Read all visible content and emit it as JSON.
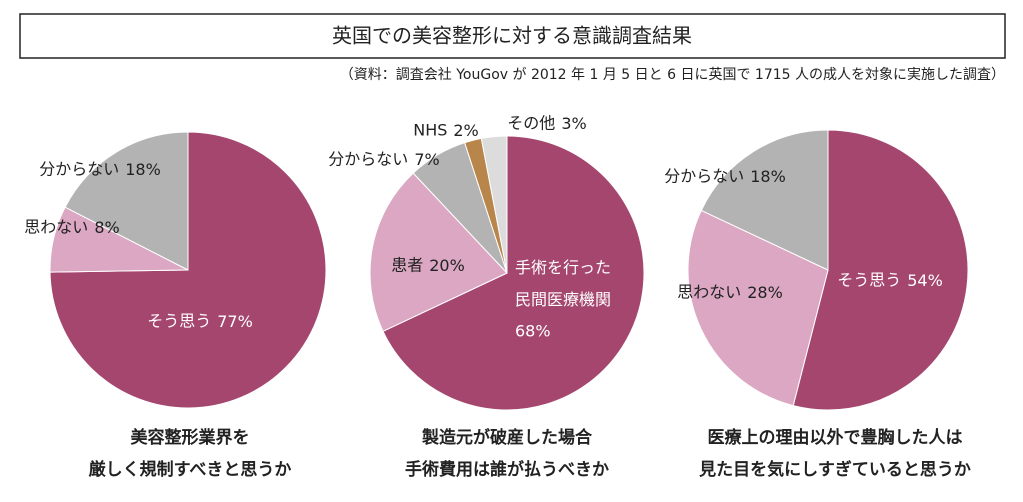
{
  "title": "英国での美容整形に対する意識調査結果",
  "source": "（資料：調査会社 YouGov が 2012 年 1 月 5 日と 6 日に英国で 1715 人の成人を対象に実施した調査）",
  "chart_data": [
    {
      "type": "pie",
      "caption": [
        "美容整形業界を",
        "厳しく規制すべきと思うか"
      ],
      "categories": [
        "そう思う",
        "思わない",
        "分からない"
      ],
      "values": [
        77,
        8,
        18
      ],
      "value_labels": [
        "77%",
        "8%",
        "18%"
      ],
      "colors": [
        "#a5466f",
        "#dba7c2",
        "#b3b3b3"
      ]
    },
    {
      "type": "pie",
      "caption": [
        "製造元が破産した場合",
        "手術費用は誰が払うべきか"
      ],
      "categories": [
        "手術を行った\n民間医療機関",
        "患者",
        "分からない",
        "NHS",
        "その他"
      ],
      "values": [
        68,
        20,
        7,
        2,
        3
      ],
      "value_labels": [
        "68%",
        "20%",
        "7%",
        "2%",
        "3%"
      ],
      "colors": [
        "#a5466f",
        "#dba7c2",
        "#b3b3b3",
        "#b8864b",
        "#dcdcdc"
      ]
    },
    {
      "type": "pie",
      "caption": [
        "医療上の理由以外で豊胸した人は",
        "見た目を気にしすぎていると思うか"
      ],
      "categories": [
        "そう思う",
        "思わない",
        "分からない"
      ],
      "values": [
        54,
        28,
        18
      ],
      "value_labels": [
        "54%",
        "28%",
        "18%"
      ],
      "colors": [
        "#a5466f",
        "#dba7c2",
        "#b3b3b3"
      ]
    }
  ]
}
